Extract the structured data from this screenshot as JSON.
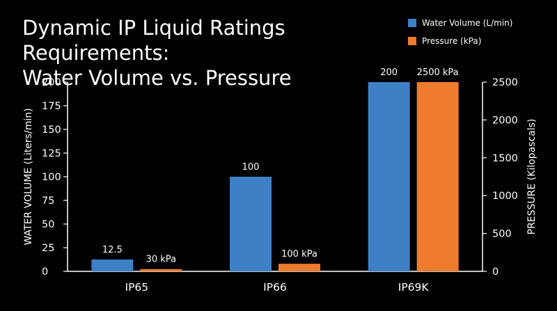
{
  "title_line1": "Dynamic IP Liquid Ratings Requirements:",
  "title_line2": "Water Volume vs. Pressure",
  "colors": {
    "water": "#3f7fc6",
    "pressure": "#ef7b2d",
    "axis": "#ffffff",
    "background": "#000000"
  },
  "chart_data": {
    "type": "bar",
    "categories": [
      "IP65",
      "IP66",
      "IP69K"
    ],
    "series": [
      {
        "name": "Water Volume (L/min)",
        "axis": "left",
        "values": [
          12.5,
          100,
          200
        ],
        "labels": [
          "12.5",
          "100",
          "200"
        ]
      },
      {
        "name": "Pressure (kPa)",
        "axis": "right",
        "values": [
          30,
          100,
          2500
        ],
        "labels": [
          "30 kPa",
          "100 kPa",
          "2500 kPa"
        ]
      }
    ],
    "ylabel_left": "WATER VOLUME (Liters/min)",
    "ylabel_right": "PRESSURE (Kilopascals)",
    "ylim_left": [
      0,
      200
    ],
    "ylim_right": [
      0,
      2500
    ],
    "yticks_left": [
      "0",
      "25",
      "50",
      "75",
      "100",
      "125",
      "150",
      "175",
      "200"
    ],
    "yticks_right": [
      "0",
      "500",
      "1000",
      "1500",
      "2000",
      "2500"
    ],
    "grid": false,
    "legend": "top-right"
  }
}
